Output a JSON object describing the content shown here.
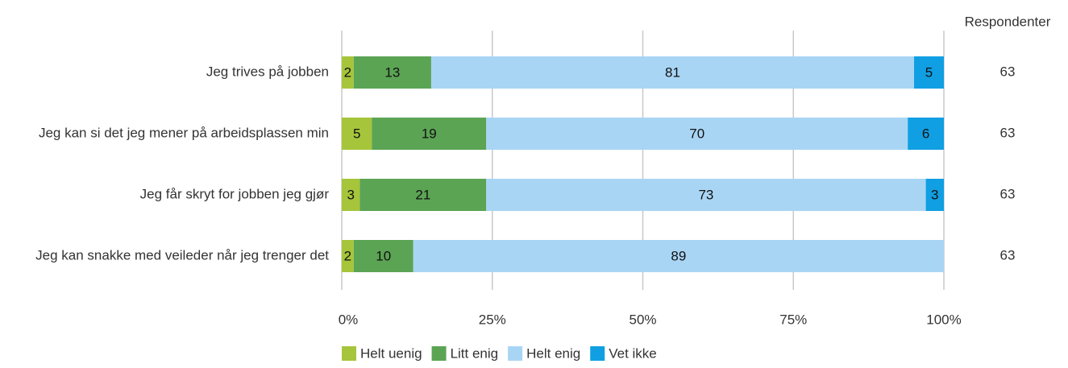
{
  "chart_data": {
    "type": "stacked-bar-100",
    "categories": [
      "Jeg trives på jobben",
      "Jeg kan si det jeg mener på arbeidsplassen min",
      "Jeg får skryt for jobben jeg gjør",
      "Jeg kan snakke med veileder når jeg trenger det"
    ],
    "series": [
      {
        "name": "Helt uenig",
        "color": "#a6c53b",
        "values": [
          2,
          5,
          3,
          2
        ]
      },
      {
        "name": "Litt enig",
        "color": "#5ba454",
        "values": [
          13,
          19,
          21,
          10
        ]
      },
      {
        "name": "Helt enig",
        "color": "#a9d5f5",
        "values": [
          81,
          70,
          73,
          89
        ]
      },
      {
        "name": "Vet ikke",
        "color": "#109fe2",
        "values": [
          5,
          6,
          3,
          null
        ]
      }
    ],
    "respondents": {
      "label": "Respondenter",
      "values": [
        63,
        63,
        63,
        63
      ]
    },
    "xlim": [
      0,
      100
    ],
    "xticks": [
      {
        "value": 0,
        "label": "0%"
      },
      {
        "value": 25,
        "label": "25%"
      },
      {
        "value": 50,
        "label": "50%"
      },
      {
        "value": 75,
        "label": "75%"
      },
      {
        "value": 100,
        "label": "100%"
      }
    ],
    "grid": true,
    "legend": "bottom"
  }
}
